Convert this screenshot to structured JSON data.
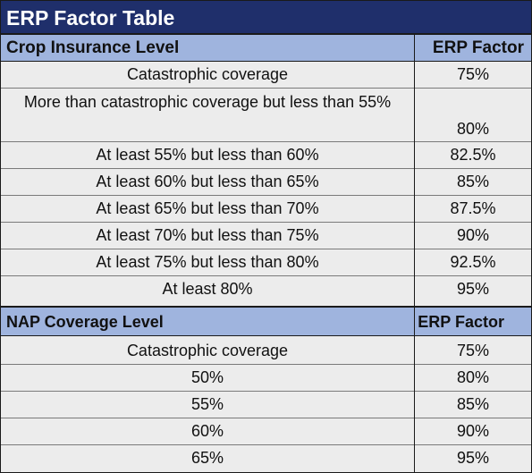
{
  "title": "ERP Factor Table",
  "crop_section": {
    "header_left": "Crop Insurance Level",
    "header_right": "ERP Factor",
    "rows": [
      {
        "level": "Catastrophic coverage",
        "factor": "75%"
      },
      {
        "level": "More than catastrophic coverage but less than 55%",
        "factor": "80%"
      },
      {
        "level": "At least 55% but less than 60%",
        "factor": "82.5%"
      },
      {
        "level": "At least 60% but less than 65%",
        "factor": "85%"
      },
      {
        "level": "At least 65% but less than 70%",
        "factor": "87.5%"
      },
      {
        "level": "At least 70% but less than 75%",
        "factor": "90%"
      },
      {
        "level": "At least 75% but less than 80%",
        "factor": "92.5%"
      },
      {
        "level": "At least 80%",
        "factor": "95%"
      }
    ]
  },
  "nap_section": {
    "header_left": "NAP Coverage Level",
    "header_right": "ERP Factor",
    "rows": [
      {
        "level": "Catastrophic coverage",
        "factor": "75%"
      },
      {
        "level": "50%",
        "factor": "80%"
      },
      {
        "level": "55%",
        "factor": "85%"
      },
      {
        "level": "60%",
        "factor": "90%"
      },
      {
        "level": "65%",
        "factor": "95%"
      }
    ]
  },
  "colors": {
    "title_bg": "#1f2f6b",
    "section_header_bg": "#9fb4de",
    "row_bg": "#ececec"
  }
}
